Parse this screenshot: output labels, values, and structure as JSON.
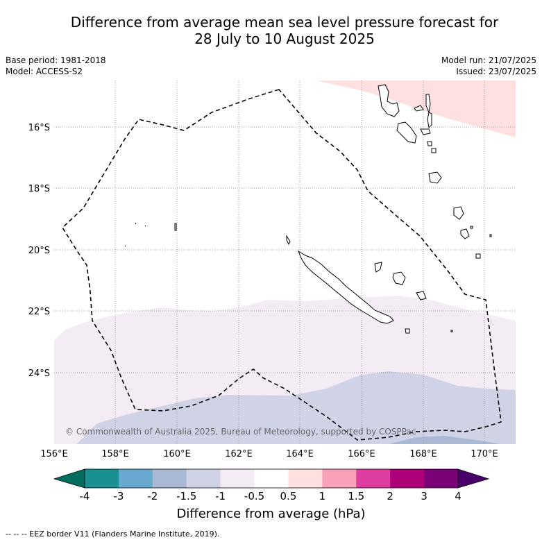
{
  "title_line1": "Difference from average mean sea level pressure forecast for",
  "title_line2": "28 July to 10 August 2025",
  "base_period": "Base period: 1981-2018",
  "model": "Model: ACCESS-S2",
  "model_run": "Model run: 21/07/2025",
  "issued": "Issued: 23/07/2025",
  "copyright": "© Commonwealth of Australia 2025, Bureau of Meteorology, supported by COSPPac",
  "lat_ticks": [
    "16°S",
    "18°S",
    "20°S",
    "22°S",
    "24°S"
  ],
  "lon_ticks": [
    "156°E",
    "158°E",
    "160°E",
    "162°E",
    "164°E",
    "166°E",
    "168°E",
    "170°E"
  ],
  "colorbar": {
    "labels": [
      "-4",
      "-3",
      "-2",
      "-1.5",
      "-1",
      "-0.5",
      "0.5",
      "1",
      "1.5",
      "2",
      "3",
      "4"
    ],
    "colors": [
      "#1a9093",
      "#67a9cf",
      "#a9b9d4",
      "#d0d2e6",
      "#f3ecf5",
      "#ffffff",
      "#fde0df",
      "#f8a0b8",
      "#de3ea0",
      "#ad0079",
      "#7a0177"
    ],
    "low_extend_color": "#006d5e",
    "high_extend_color": "#49006a",
    "title": "Difference from average (hPa)"
  },
  "legend_footer": "--  --  -- EEZ border V11 (Flanders Marine Institute, 2019).",
  "map_colors": {
    "positive_half": "#fde0df",
    "negative_half": "#f3ecf5",
    "negative_one_half": "#d0d2e6",
    "negative_two": "#a9b9d4"
  }
}
